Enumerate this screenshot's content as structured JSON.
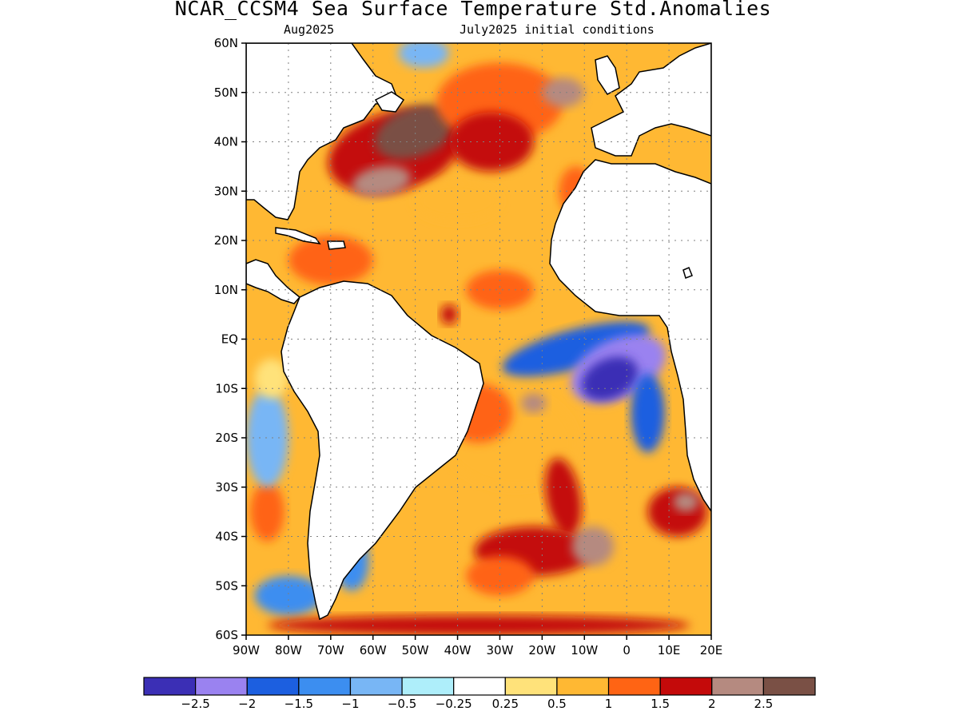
{
  "title": "NCAR_CCSM4 Sea Surface Temperature Std.Anomalies",
  "subtitle_left": "Aug2025",
  "subtitle_right": "July2025 initial conditions",
  "map": {
    "lon_labels": [
      "90W",
      "80W",
      "70W",
      "60W",
      "50W",
      "40W",
      "30W",
      "20W",
      "10W",
      "0",
      "10E",
      "20E"
    ],
    "lat_labels": [
      "60N",
      "50N",
      "40N",
      "30N",
      "20N",
      "10N",
      "EQ",
      "10S",
      "20S",
      "30S",
      "40S",
      "50S",
      "60S"
    ],
    "lon_range": [
      -90,
      20
    ],
    "lat_range": [
      -60,
      60
    ],
    "grid": "dotted"
  },
  "legend": {
    "colors": [
      "#3b2fb5",
      "#9a82f0",
      "#1c5fe0",
      "#3c8ef0",
      "#78b6f5",
      "#aeeefa",
      "#ffffff",
      "#ffe27a",
      "#ffb833",
      "#ff6414",
      "#c40a0a",
      "#b58a80",
      "#7a5045"
    ],
    "labels": [
      "-2.5",
      "-2",
      "-1.5",
      "-1",
      "-0.5",
      "-0.25",
      "0.25",
      "0.5",
      "1",
      "1.5",
      "2",
      "2.5"
    ]
  },
  "anomaly_patches": [
    {
      "lon": -55,
      "lat": 38,
      "rx": 16,
      "ry": 8,
      "level": 10,
      "rot": -15
    },
    {
      "lon": -50,
      "lat": 42,
      "rx": 10,
      "ry": 5,
      "level": 12,
      "rot": -20
    },
    {
      "lon": -58,
      "lat": 32,
      "rx": 7,
      "ry": 3,
      "level": 11,
      "rot": -10
    },
    {
      "lon": -30,
      "lat": 48,
      "rx": 15,
      "ry": 8,
      "level": 9,
      "rot": 0
    },
    {
      "lon": -32,
      "lat": 40,
      "rx": 10,
      "ry": 6,
      "level": 10,
      "rot": 0
    },
    {
      "lon": -15,
      "lat": 50,
      "rx": 5,
      "ry": 3,
      "level": 11,
      "rot": 0
    },
    {
      "lon": -40,
      "lat": 28,
      "rx": 10,
      "ry": 4,
      "level": 8,
      "rot": 0
    },
    {
      "lon": -70,
      "lat": 16,
      "rx": 10,
      "ry": 5,
      "level": 9,
      "rot": 0
    },
    {
      "lon": -30,
      "lat": 10,
      "rx": 8,
      "ry": 4,
      "level": 9,
      "rot": 0
    },
    {
      "lon": -42,
      "lat": 5,
      "rx": 2,
      "ry": 2,
      "level": 10,
      "rot": 0
    },
    {
      "lon": -12,
      "lat": -2,
      "rx": 18,
      "ry": 4,
      "level": 2,
      "rot": -15
    },
    {
      "lon": -2,
      "lat": -6,
      "rx": 12,
      "ry": 6,
      "level": 1,
      "rot": -25
    },
    {
      "lon": -4,
      "lat": -8,
      "rx": 7,
      "ry": 4,
      "level": 0,
      "rot": -25
    },
    {
      "lon": 5,
      "lat": -15,
      "rx": 4,
      "ry": 8,
      "level": 2,
      "rot": 0
    },
    {
      "lon": -28,
      "lat": -20,
      "rx": 16,
      "ry": 10,
      "level": 8,
      "rot": 10
    },
    {
      "lon": -35,
      "lat": -15,
      "rx": 8,
      "ry": 6,
      "level": 9,
      "rot": 0
    },
    {
      "lon": -22,
      "lat": -13,
      "rx": 3,
      "ry": 2,
      "level": 11,
      "rot": 0
    },
    {
      "lon": -15,
      "lat": -32,
      "rx": 4,
      "ry": 8,
      "level": 10,
      "rot": -10
    },
    {
      "lon": 12,
      "lat": -35,
      "rx": 7,
      "ry": 5,
      "level": 10,
      "rot": 0
    },
    {
      "lon": 14,
      "lat": -33,
      "rx": 3,
      "ry": 2,
      "level": 11,
      "rot": 0
    },
    {
      "lon": -22,
      "lat": -43,
      "rx": 14,
      "ry": 5,
      "level": 10,
      "rot": 0
    },
    {
      "lon": -8,
      "lat": -42,
      "rx": 5,
      "ry": 4,
      "level": 11,
      "rot": 0
    },
    {
      "lon": -30,
      "lat": -48,
      "rx": 8,
      "ry": 4,
      "level": 9,
      "rot": 0
    },
    {
      "lon": -65,
      "lat": -45,
      "rx": 4,
      "ry": 6,
      "level": 3,
      "rot": 0
    },
    {
      "lon": -80,
      "lat": -52,
      "rx": 8,
      "ry": 4,
      "level": 3,
      "rot": 0
    },
    {
      "lon": -85,
      "lat": -35,
      "rx": 4,
      "ry": 6,
      "level": 9,
      "rot": 0
    },
    {
      "lon": -85,
      "lat": -20,
      "rx": 5,
      "ry": 10,
      "level": 4,
      "rot": 0
    },
    {
      "lon": -84,
      "lat": -8,
      "rx": 4,
      "ry": 4,
      "level": 7,
      "rot": 0
    },
    {
      "lon": -35,
      "lat": -58,
      "rx": 50,
      "ry": 2,
      "level": 10,
      "rot": 0
    },
    {
      "lon": -48,
      "lat": 58,
      "rx": 6,
      "ry": 3,
      "level": 4,
      "rot": 0
    },
    {
      "lon": -12,
      "lat": 30,
      "rx": 4,
      "ry": 5,
      "level": 9,
      "rot": 0
    }
  ]
}
